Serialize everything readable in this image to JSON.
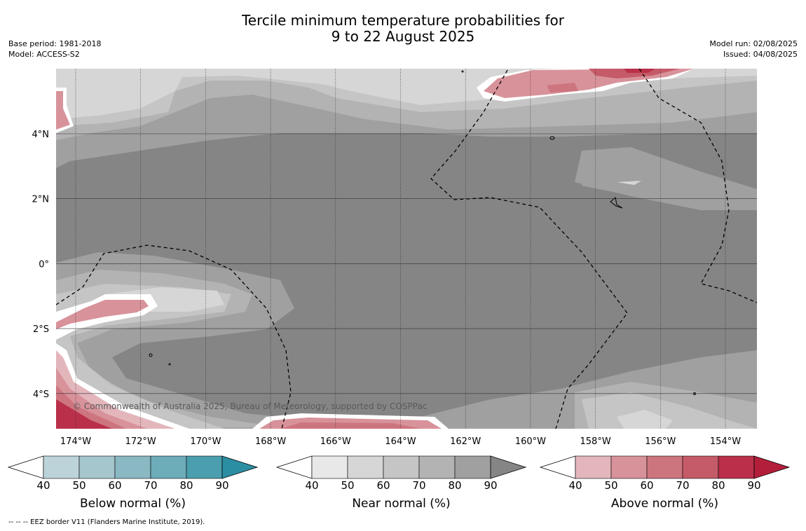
{
  "title_line1": "Tercile minimum temperature probabilities for",
  "title_line2": "9 to 22 August 2025",
  "base_period": "Base period: 1981-2018",
  "model": "Model: ACCESS-S2",
  "model_run": "Model run: 02/08/2025",
  "issued": "Issued: 04/08/2025",
  "copyright": "© Commonwealth of Australia 2025, Bureau of Meteorology, supported by COSPPac",
  "footnote": "--  --  -- EEZ border V11 (Flanders Marine Institute, 2019).",
  "lon_labels": [
    "174°W",
    "172°W",
    "170°W",
    "168°W",
    "166°W",
    "164°W",
    "162°W",
    "160°W",
    "158°W",
    "156°W",
    "154°W"
  ],
  "lat_labels": [
    "4°N",
    "2°N",
    "0°",
    "2°S",
    "4°S"
  ],
  "colorbars": [
    {
      "label": "Below normal (%)",
      "ticks": [
        "40",
        "50",
        "60",
        "70",
        "80",
        "90"
      ],
      "colors": [
        "#bdd3da",
        "#a6c6cd",
        "#8ab8c3",
        "#6dacb9",
        "#4b9eae"
      ],
      "extend_color": "#2c8ea3"
    },
    {
      "label": "Near normal (%)",
      "ticks": [
        "40",
        "50",
        "60",
        "70",
        "80",
        "90"
      ],
      "colors": [
        "#e8e8e8",
        "#d6d6d6",
        "#c5c5c5",
        "#b3b3b3",
        "#a0a0a0"
      ],
      "extend_color": "#858585"
    },
    {
      "label": "Above normal (%)",
      "ticks": [
        "40",
        "50",
        "60",
        "70",
        "80",
        "90"
      ],
      "colors": [
        "#e3b6bc",
        "#d8929a",
        "#cd757f",
        "#c55b68",
        "#ba304a"
      ],
      "extend_color": "#b31e3a"
    }
  ]
}
